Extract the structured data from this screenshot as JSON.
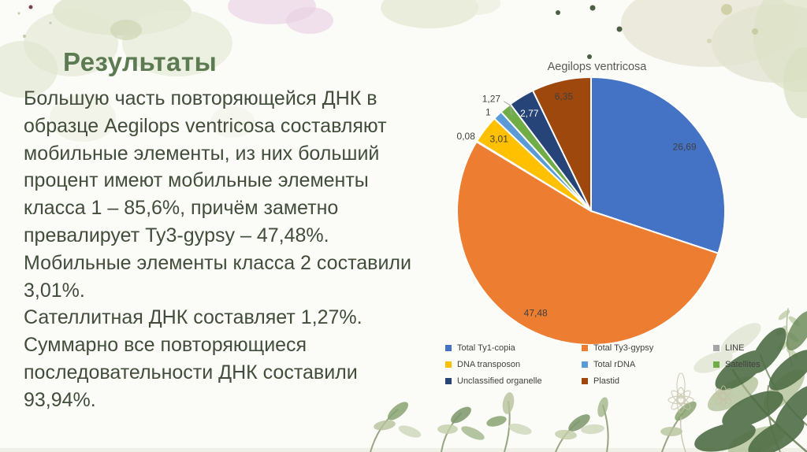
{
  "slide": {
    "title": "Результаты",
    "paragraphs": [
      "Большую часть повторяющейся ДНК в образце Aegilops ventricosa составляют мобильные элементы, из них больший процент имеют мобильные элементы класса 1 – 85,6%, причём заметно превалирует Ty3-gypsy – 47,48%. Мобильные элементы класса 2 составили 3,01%.",
      "Сателлитная ДНК составляет 1,27%.",
      "Суммарно все повторяющиеся последовательности ДНК составили 93,94%."
    ],
    "title_color": "#5d7b52",
    "body_color": "#424e3b"
  },
  "chart_data": {
    "type": "pie",
    "title": "Aegilops ventricosa",
    "legend_position": "bottom",
    "start_angle_deg": 0,
    "direction": "clockwise",
    "label_color_default": "#404040",
    "series": [
      {
        "name": "Total Ty1-copia",
        "value": 26.69,
        "label": "26,69",
        "color": "#4472C4",
        "label_placement": "inside",
        "label_color": "#404040",
        "label_offset": [
          0,
          4
        ]
      },
      {
        "name": "Total Ty3-gypsy",
        "value": 47.48,
        "label": "47,48",
        "color": "#ED7D31",
        "label_placement": "inside",
        "label_color": "#404040",
        "label_offset": [
          -9,
          -3
        ]
      },
      {
        "name": "LINE",
        "value": 0.08,
        "label": "0,08",
        "color": "#A5A5A5",
        "label_placement": "outside",
        "label_color": "#404040",
        "label_offset": [
          0,
          2
        ]
      },
      {
        "name": "DNA transposon",
        "value": 3.01,
        "label": "3,01",
        "color": "#FFC000",
        "label_placement": "inside",
        "label_color": "#404040",
        "label_offset": [
          -1,
          -2
        ]
      },
      {
        "name": "Total rDNA",
        "value": 1.0,
        "label": "1",
        "color": "#5B9BD5",
        "label_placement": "outside",
        "label_color": "#404040",
        "label_offset": [
          -1,
          8
        ]
      },
      {
        "name": "Satellites",
        "value": 1.27,
        "label": "1,27",
        "color": "#70AD47",
        "label_placement": "outside",
        "label_color": "#404040",
        "label_offset": [
          -8,
          1
        ],
        "leader": true
      },
      {
        "name": "Unclassified organelle",
        "value": 2.77,
        "label": "2,77",
        "color": "#264478",
        "label_placement": "inside",
        "label_color": "#FFFFFF",
        "label_offset": [
          -2,
          1
        ]
      },
      {
        "name": "Plastid",
        "value": 6.35,
        "label": "6,35",
        "color": "#9E480E",
        "label_placement": "inside",
        "label_color": "#3F3F3F",
        "label_offset": [
          -2,
          -3
        ]
      }
    ]
  }
}
